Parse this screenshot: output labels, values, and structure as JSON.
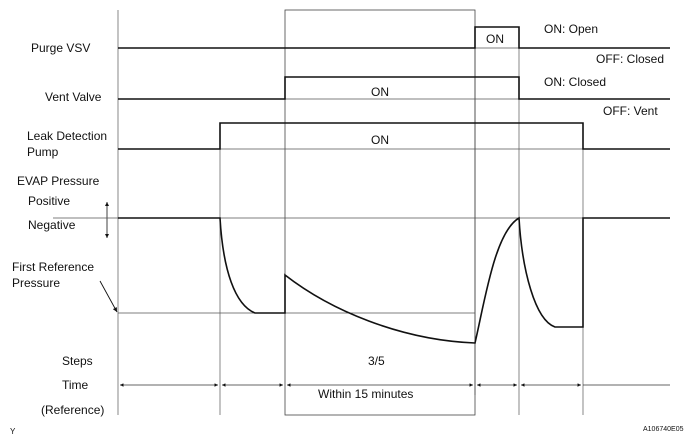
{
  "signals": {
    "purge_vsv": {
      "label": "Purge VSV",
      "pulse": "ON",
      "on_state": "ON: Open",
      "off_state": "OFF: Closed"
    },
    "vent_valve": {
      "label": "Vent Valve",
      "pulse": "ON",
      "on_state": "ON: Closed",
      "off_state": "OFF: Vent"
    },
    "leak_pump": {
      "label_line1": "Leak Detection",
      "label_line2": "Pump",
      "pulse": "ON"
    },
    "evap": {
      "label": "EVAP Pressure",
      "positive": "Positive",
      "negative": "Negative"
    },
    "reference": {
      "label_line1": "First Reference",
      "label_line2": "Pressure"
    }
  },
  "rows": {
    "steps_label": "Steps",
    "steps_value": "3/5",
    "time_label": "Time",
    "time_value": "Within 15 minutes",
    "reference_label": "(Reference)"
  },
  "footer": {
    "left_mark": "Y",
    "figure_id": "A106740E05"
  }
}
